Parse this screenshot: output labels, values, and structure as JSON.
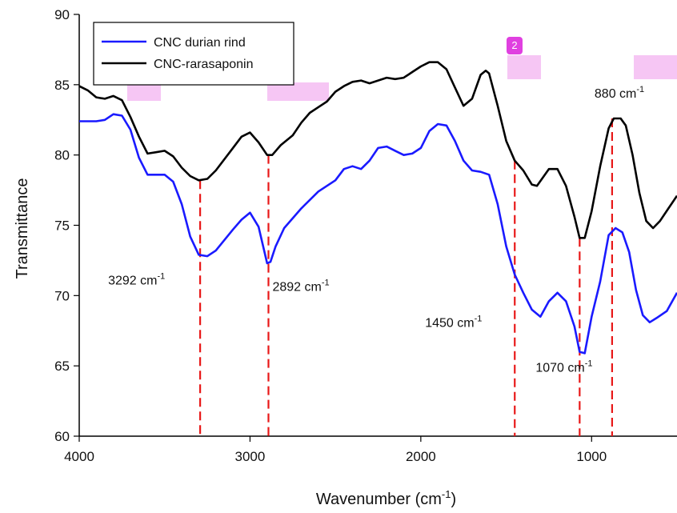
{
  "badge": "2",
  "chart_data": {
    "type": "line",
    "xlabel": "Wavenumber (cm",
    "xlabel_sup": "-1",
    "xlabel_close": ")",
    "ylabel": "Transmittance",
    "xlim": [
      4000,
      500
    ],
    "ylim": [
      60,
      90
    ],
    "x_reversed": true,
    "xticks": [
      4000,
      3000,
      2000,
      1000
    ],
    "yticks": [
      60,
      65,
      70,
      75,
      80,
      85,
      90
    ],
    "legend_position": "top-left",
    "series": [
      {
        "name": "CNC durian rind",
        "color": "#1a1aff",
        "points": [
          [
            4000,
            82.4
          ],
          [
            3900,
            82.4
          ],
          [
            3850,
            82.5
          ],
          [
            3800,
            82.9
          ],
          [
            3750,
            82.8
          ],
          [
            3700,
            81.8
          ],
          [
            3650,
            79.8
          ],
          [
            3600,
            78.6
          ],
          [
            3550,
            78.6
          ],
          [
            3500,
            78.6
          ],
          [
            3450,
            78.1
          ],
          [
            3400,
            76.5
          ],
          [
            3350,
            74.2
          ],
          [
            3300,
            72.9
          ],
          [
            3250,
            72.8
          ],
          [
            3200,
            73.2
          ],
          [
            3100,
            74.7
          ],
          [
            3050,
            75.4
          ],
          [
            3000,
            75.9
          ],
          [
            2950,
            74.9
          ],
          [
            2900,
            72.3
          ],
          [
            2880,
            72.4
          ],
          [
            2850,
            73.5
          ],
          [
            2800,
            74.8
          ],
          [
            2700,
            76.2
          ],
          [
            2600,
            77.4
          ],
          [
            2500,
            78.2
          ],
          [
            2450,
            79.0
          ],
          [
            2400,
            79.2
          ],
          [
            2350,
            79.0
          ],
          [
            2300,
            79.6
          ],
          [
            2250,
            80.5
          ],
          [
            2200,
            80.6
          ],
          [
            2150,
            80.3
          ],
          [
            2100,
            80.0
          ],
          [
            2050,
            80.1
          ],
          [
            2000,
            80.5
          ],
          [
            1950,
            81.7
          ],
          [
            1900,
            82.2
          ],
          [
            1850,
            82.1
          ],
          [
            1800,
            81.0
          ],
          [
            1750,
            79.6
          ],
          [
            1700,
            78.9
          ],
          [
            1650,
            78.8
          ],
          [
            1600,
            78.6
          ],
          [
            1550,
            76.5
          ],
          [
            1500,
            73.5
          ],
          [
            1450,
            71.5
          ],
          [
            1400,
            70.2
          ],
          [
            1350,
            69.0
          ],
          [
            1300,
            68.5
          ],
          [
            1250,
            69.6
          ],
          [
            1200,
            70.2
          ],
          [
            1150,
            69.6
          ],
          [
            1100,
            67.8
          ],
          [
            1070,
            66.0
          ],
          [
            1040,
            65.9
          ],
          [
            1000,
            68.5
          ],
          [
            950,
            71.0
          ],
          [
            900,
            74.3
          ],
          [
            860,
            74.8
          ],
          [
            820,
            74.5
          ],
          [
            780,
            73.1
          ],
          [
            740,
            70.4
          ],
          [
            700,
            68.6
          ],
          [
            660,
            68.1
          ],
          [
            620,
            68.4
          ],
          [
            560,
            68.9
          ],
          [
            500,
            70.2
          ]
        ]
      },
      {
        "name": "CNC-rarasaponin",
        "color": "#000000",
        "points": [
          [
            4000,
            84.9
          ],
          [
            3950,
            84.6
          ],
          [
            3900,
            84.1
          ],
          [
            3850,
            84.0
          ],
          [
            3800,
            84.2
          ],
          [
            3750,
            83.9
          ],
          [
            3700,
            82.7
          ],
          [
            3650,
            81.3
          ],
          [
            3600,
            80.1
          ],
          [
            3550,
            80.2
          ],
          [
            3500,
            80.3
          ],
          [
            3450,
            79.9
          ],
          [
            3400,
            79.1
          ],
          [
            3350,
            78.5
          ],
          [
            3300,
            78.2
          ],
          [
            3250,
            78.3
          ],
          [
            3200,
            78.9
          ],
          [
            3100,
            80.5
          ],
          [
            3050,
            81.3
          ],
          [
            3000,
            81.6
          ],
          [
            2950,
            80.9
          ],
          [
            2900,
            80.0
          ],
          [
            2870,
            80.0
          ],
          [
            2820,
            80.7
          ],
          [
            2750,
            81.4
          ],
          [
            2700,
            82.3
          ],
          [
            2650,
            83.0
          ],
          [
            2600,
            83.4
          ],
          [
            2550,
            83.8
          ],
          [
            2500,
            84.5
          ],
          [
            2450,
            84.9
          ],
          [
            2400,
            85.2
          ],
          [
            2350,
            85.3
          ],
          [
            2300,
            85.1
          ],
          [
            2250,
            85.3
          ],
          [
            2200,
            85.5
          ],
          [
            2150,
            85.4
          ],
          [
            2100,
            85.5
          ],
          [
            2050,
            85.9
          ],
          [
            2000,
            86.3
          ],
          [
            1950,
            86.6
          ],
          [
            1900,
            86.6
          ],
          [
            1850,
            86.1
          ],
          [
            1800,
            84.8
          ],
          [
            1750,
            83.5
          ],
          [
            1700,
            84.0
          ],
          [
            1650,
            85.7
          ],
          [
            1620,
            86.0
          ],
          [
            1600,
            85.8
          ],
          [
            1550,
            83.5
          ],
          [
            1500,
            81.0
          ],
          [
            1450,
            79.6
          ],
          [
            1400,
            78.9
          ],
          [
            1350,
            77.9
          ],
          [
            1320,
            77.8
          ],
          [
            1250,
            79.0
          ],
          [
            1200,
            79.0
          ],
          [
            1150,
            77.8
          ],
          [
            1100,
            75.6
          ],
          [
            1070,
            74.1
          ],
          [
            1040,
            74.1
          ],
          [
            1000,
            76.0
          ],
          [
            950,
            79.2
          ],
          [
            900,
            81.9
          ],
          [
            870,
            82.6
          ],
          [
            830,
            82.6
          ],
          [
            800,
            82.1
          ],
          [
            760,
            80.0
          ],
          [
            720,
            77.3
          ],
          [
            680,
            75.3
          ],
          [
            640,
            74.8
          ],
          [
            600,
            75.3
          ],
          [
            550,
            76.2
          ],
          [
            500,
            77.1
          ]
        ]
      }
    ],
    "annotations": [
      {
        "x": 3292,
        "y_top": 78.2,
        "label": "3292 cm",
        "sup": "-1",
        "pos": "left-below"
      },
      {
        "x": 2892,
        "y_top": 80.0,
        "label": "2892 cm",
        "sup": "-1",
        "pos": "right-below"
      },
      {
        "x": 1450,
        "y_top": 79.6,
        "label": "1450 cm",
        "sup": "-1",
        "pos": "left-low"
      },
      {
        "x": 1070,
        "y_top": 74.1,
        "label": "1070 cm",
        "sup": "-1",
        "pos": "left-lower"
      },
      {
        "x": 880,
        "y_top": 82.6,
        "label": "880 cm",
        "sup": "-1",
        "pos": "above"
      }
    ]
  }
}
